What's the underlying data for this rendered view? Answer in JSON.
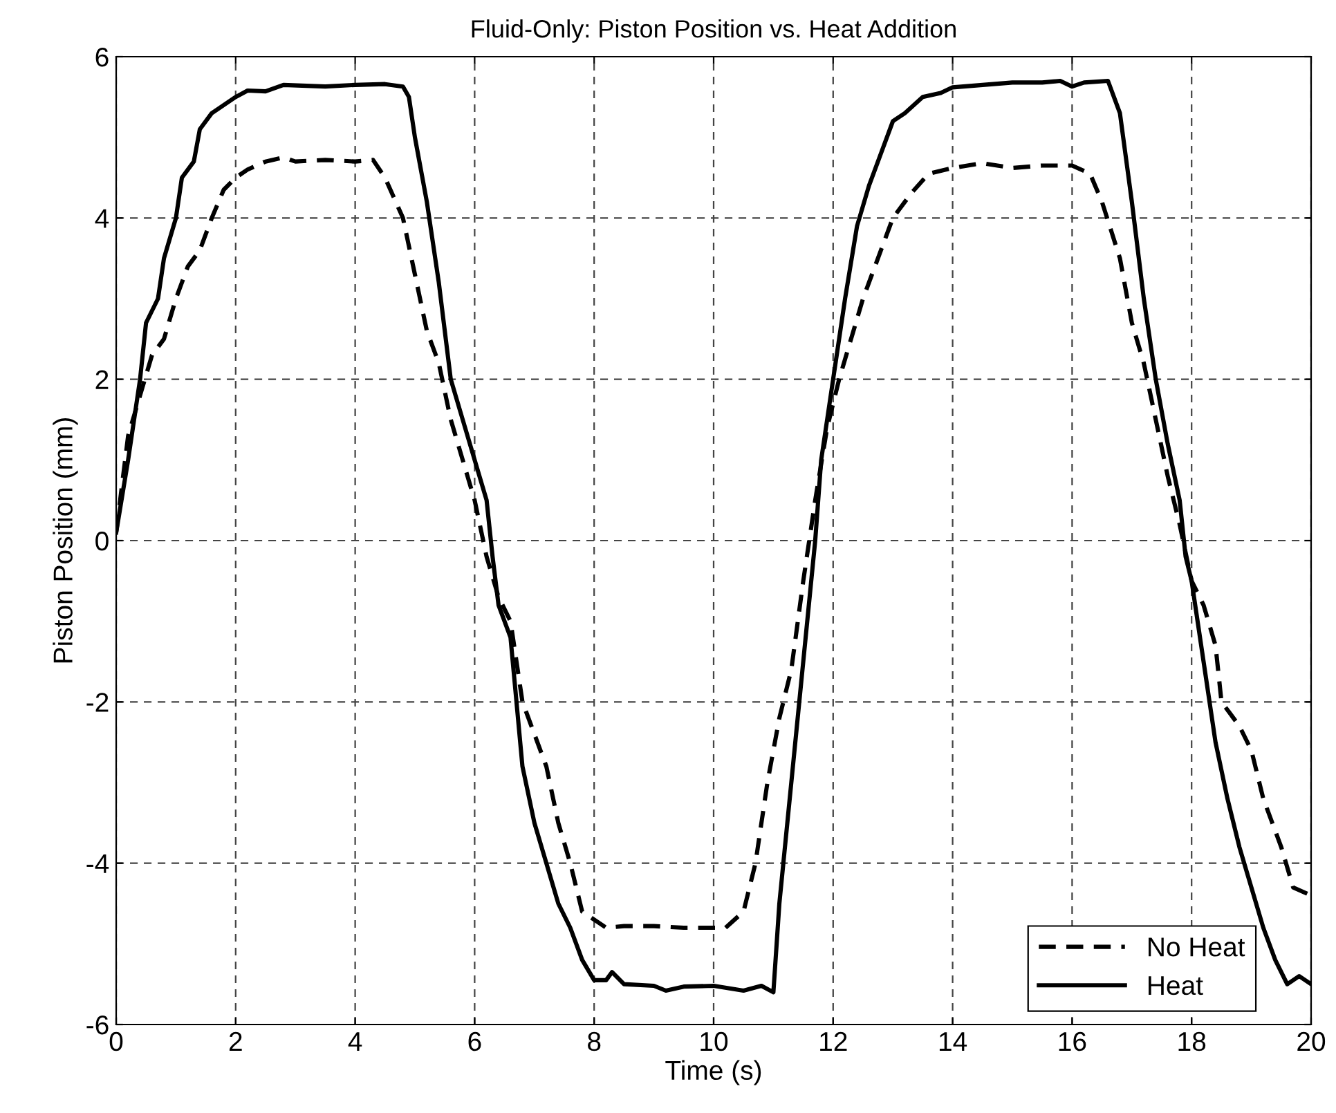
{
  "chart_data": {
    "type": "line",
    "title": "Fluid-Only: Piston Position vs. Heat Addition",
    "xlabel": "Time (s)",
    "ylabel": "Piston Position (mm)",
    "xlim": [
      0,
      20
    ],
    "ylim": [
      -6,
      6
    ],
    "xticks": [
      0,
      2,
      4,
      6,
      8,
      10,
      12,
      14,
      16,
      18,
      20
    ],
    "yticks": [
      -6,
      -4,
      -2,
      0,
      2,
      4,
      6
    ],
    "grid": true,
    "legend": "bottom right",
    "marker": "none",
    "series": [
      {
        "name": "No Heat",
        "color": "#000000",
        "line_style": "dashed",
        "x": [
          0,
          0.2,
          0.4,
          0.6,
          0.8,
          1.0,
          1.2,
          1.4,
          1.6,
          1.8,
          2.0,
          2.2,
          2.5,
          2.8,
          3.0,
          3.5,
          4.0,
          4.3,
          4.5,
          4.8,
          5.0,
          5.2,
          5.4,
          5.6,
          5.8,
          6.0,
          6.2,
          6.4,
          6.6,
          6.8,
          7.0,
          7.2,
          7.4,
          7.6,
          7.8,
          8.0,
          8.2,
          8.5,
          9.0,
          9.5,
          10.0,
          10.2,
          10.5,
          10.7,
          10.9,
          11.1,
          11.3,
          11.5,
          11.7,
          11.9,
          12.1,
          12.3,
          12.5,
          12.8,
          13.0,
          13.3,
          13.6,
          14.0,
          14.5,
          15.0,
          15.5,
          16.0,
          16.3,
          16.5,
          16.8,
          17.0,
          17.2,
          17.4,
          17.6,
          17.8,
          18.0,
          18.2,
          18.4,
          18.5,
          18.8,
          19.0,
          19.2,
          19.5,
          19.7,
          20.0
        ],
        "values": [
          0.1,
          1.3,
          1.8,
          2.3,
          2.5,
          3.0,
          3.4,
          3.6,
          4.0,
          4.35,
          4.5,
          4.6,
          4.7,
          4.75,
          4.7,
          4.72,
          4.7,
          4.72,
          4.5,
          4.0,
          3.3,
          2.6,
          2.2,
          1.5,
          1.0,
          0.5,
          -0.2,
          -0.7,
          -1.0,
          -2.0,
          -2.4,
          -2.8,
          -3.5,
          -4.0,
          -4.6,
          -4.7,
          -4.8,
          -4.78,
          -4.78,
          -4.8,
          -4.8,
          -4.8,
          -4.6,
          -4.0,
          -3.0,
          -2.2,
          -1.6,
          -0.5,
          0.5,
          1.4,
          2.0,
          2.5,
          3.0,
          3.6,
          4.0,
          4.3,
          4.55,
          4.62,
          4.68,
          4.62,
          4.65,
          4.65,
          4.55,
          4.2,
          3.5,
          2.7,
          2.2,
          1.5,
          0.8,
          0.2,
          -0.5,
          -0.8,
          -1.3,
          -2.0,
          -2.3,
          -2.6,
          -3.2,
          -3.8,
          -4.3,
          -4.4
        ]
      },
      {
        "name": "Heat",
        "color": "#000000",
        "line_style": "solid",
        "x": [
          0,
          0.2,
          0.4,
          0.5,
          0.7,
          0.8,
          1.0,
          1.1,
          1.3,
          1.4,
          1.6,
          1.8,
          2.0,
          2.2,
          2.5,
          2.8,
          3.5,
          4.0,
          4.5,
          4.8,
          4.9,
          5.0,
          5.2,
          5.4,
          5.6,
          5.8,
          6.0,
          6.2,
          6.3,
          6.4,
          6.6,
          6.7,
          6.8,
          7.0,
          7.2,
          7.4,
          7.6,
          7.8,
          8.0,
          8.2,
          8.3,
          8.5,
          9.0,
          9.2,
          9.5,
          10.0,
          10.5,
          10.8,
          11.0,
          11.1,
          11.3,
          11.5,
          11.7,
          11.8,
          12.0,
          12.2,
          12.4,
          12.6,
          12.8,
          13.0,
          13.2,
          13.5,
          13.8,
          14.0,
          14.5,
          15.0,
          15.5,
          15.8,
          16.0,
          16.2,
          16.6,
          16.8,
          17.0,
          17.2,
          17.4,
          17.6,
          17.8,
          17.9,
          18.0,
          18.2,
          18.4,
          18.6,
          18.8,
          19.0,
          19.2,
          19.4,
          19.6,
          19.8,
          20.0
        ],
        "values": [
          0.1,
          1.0,
          2.0,
          2.7,
          3.0,
          3.5,
          4.0,
          4.5,
          4.7,
          5.1,
          5.3,
          5.4,
          5.5,
          5.58,
          5.57,
          5.65,
          5.63,
          5.65,
          5.66,
          5.63,
          5.5,
          5.0,
          4.2,
          3.2,
          2.0,
          1.5,
          1.0,
          0.5,
          -0.2,
          -0.8,
          -1.2,
          -2.0,
          -2.8,
          -3.5,
          -4.0,
          -4.5,
          -4.8,
          -5.2,
          -5.45,
          -5.45,
          -5.35,
          -5.5,
          -5.52,
          -5.58,
          -5.53,
          -5.52,
          -5.58,
          -5.52,
          -5.6,
          -4.5,
          -3.0,
          -1.5,
          0.0,
          1.0,
          2.0,
          3.0,
          3.9,
          4.4,
          4.8,
          5.2,
          5.3,
          5.5,
          5.55,
          5.62,
          5.65,
          5.68,
          5.68,
          5.7,
          5.63,
          5.68,
          5.7,
          5.3,
          4.2,
          3.0,
          2.0,
          1.2,
          0.5,
          -0.2,
          -0.5,
          -1.5,
          -2.5,
          -3.2,
          -3.8,
          -4.3,
          -4.8,
          -5.2,
          -5.5,
          -5.4,
          -5.5
        ]
      }
    ]
  }
}
